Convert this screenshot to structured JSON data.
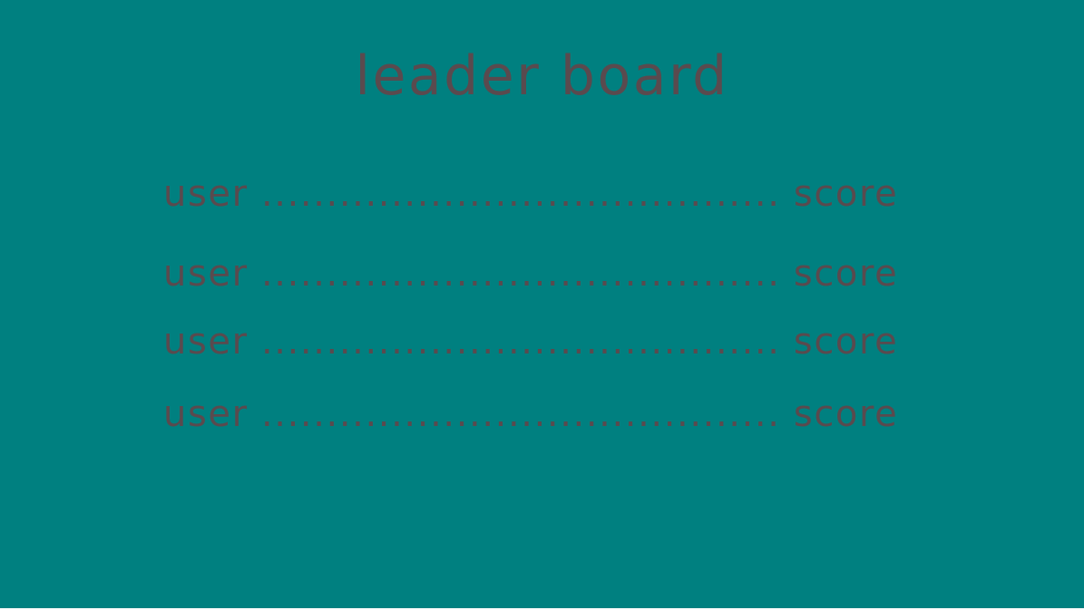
{
  "title": "leader board",
  "entries": [
    {
      "user": "user",
      "dots": " ........................................ ",
      "score": "score"
    },
    {
      "user": "user",
      "dots": " ........................................ ",
      "score": "score"
    },
    {
      "user": "user",
      "dots": " ........................................ ",
      "score": "score"
    },
    {
      "user": "user",
      "dots": " ........................................ ",
      "score": "score"
    }
  ],
  "colors": {
    "background": "#008080",
    "text": "#5a4a4e"
  }
}
